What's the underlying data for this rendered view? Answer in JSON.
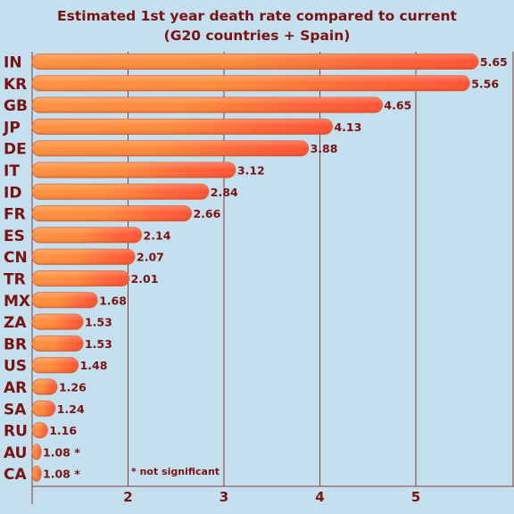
{
  "chart_data": {
    "type": "bar",
    "orientation": "horizontal",
    "title": "Estimated 1st year death rate compared to current",
    "subtitle": "(G20 countries + Spain)",
    "categories": [
      "IN",
      "KR",
      "GB",
      "JP",
      "DE",
      "IT",
      "ID",
      "FR",
      "ES",
      "CN",
      "TR",
      "MX",
      "ZA",
      "BR",
      "US",
      "AR",
      "SA",
      "RU",
      "AU",
      "CA"
    ],
    "values": [
      5.65,
      5.56,
      4.65,
      4.13,
      3.88,
      3.12,
      2.84,
      2.66,
      2.14,
      2.07,
      2.01,
      1.68,
      1.53,
      1.53,
      1.48,
      1.26,
      1.24,
      1.16,
      1.08,
      1.08
    ],
    "value_labels": [
      "5.65",
      "5.56",
      "4.65",
      "4.13",
      "3.88",
      "3.12",
      "2.84",
      "2.66",
      "2.14",
      "2.07",
      "2.01",
      "1.68",
      "1.53",
      "1.53",
      "1.48",
      "1.26",
      "1.24",
      "1.16",
      "1.08 *",
      "1.08 *"
    ],
    "xticks": [
      "2",
      "3",
      "4",
      "5"
    ],
    "xlim": [
      1,
      6
    ],
    "grid": true,
    "annotation": "* not significant",
    "colors": {
      "bar_main": "#ff8c3c",
      "bar_accent": "#ff5535",
      "text": "#7a1212",
      "background": "#c4dfee",
      "grid": "#8a3a3a"
    }
  }
}
